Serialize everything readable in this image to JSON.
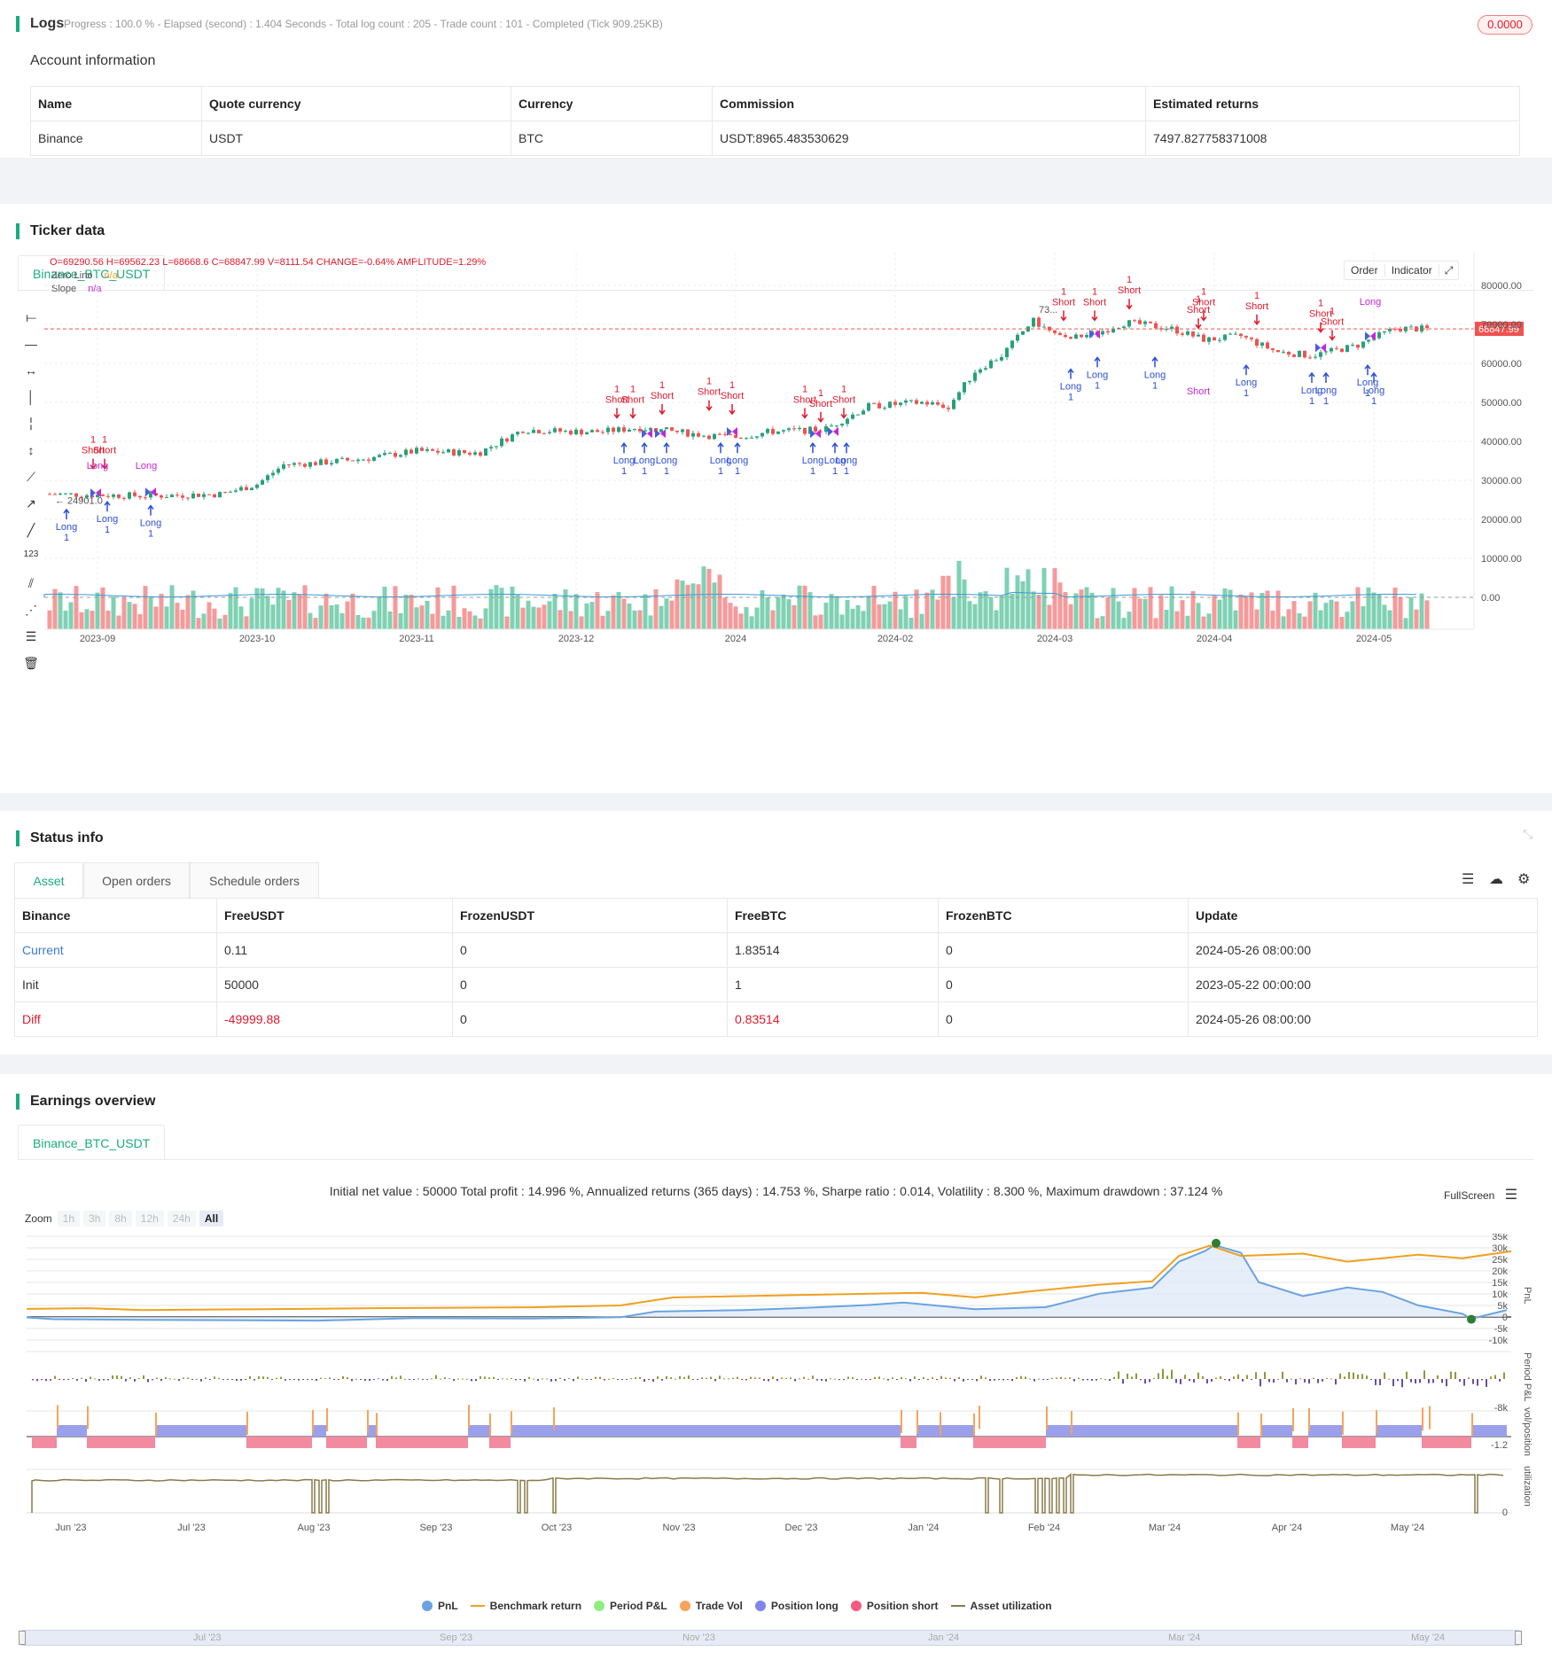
{
  "logs": {
    "title": "Logs",
    "status": "Progress : 100.0 % - Elapsed (second) : 1.404  Seconds - Total log count : 205 - Trade count : 101 - Completed (Tick 909.25KB)",
    "badge": "0.0000"
  },
  "account": {
    "title": "Account information",
    "headers": [
      "Name",
      "Quote currency",
      "Currency",
      "Commission",
      "Estimated returns"
    ],
    "row": [
      "Binance",
      "USDT",
      "BTC",
      "USDT:8965.483530629",
      "7497.827758371008"
    ]
  },
  "ticker": {
    "title": "Ticker data",
    "tab": "Binance_BTC_USDT",
    "ohlc": "O=69290.56 H=69562.23 L=68668.6 C=68847.99 V=8111.54 CHANGE=-0.64% AMPLITUDE=1.29%",
    "zero_line_label": "Zero Line",
    "zero_line_value": "n/a",
    "slope_label": "Slope",
    "slope_value": "n/a",
    "order_btn": "Order",
    "indicator_btn": "Indicator",
    "price_tag": "68847.99",
    "price_axis": [
      "80000.00",
      "70000.00",
      "60000.00",
      "50000.00",
      "40000.00",
      "30000.00",
      "20000.00",
      "10000.00",
      "0.00"
    ],
    "date_axis": [
      "2023-09",
      "2023-10",
      "2023-11",
      "2023-12",
      "2024",
      "2024-02",
      "2024-03",
      "2024-04",
      "2024-05"
    ],
    "low_marker": "24901.0",
    "high_marker": "73..."
  },
  "status": {
    "title": "Status info",
    "tabs": [
      "Asset",
      "Open orders",
      "Schedule orders"
    ],
    "headers": [
      "Binance",
      "FreeUSDT",
      "FrozenUSDT",
      "FreeBTC",
      "FrozenBTC",
      "Update"
    ],
    "rows": [
      [
        "Current",
        "0.11",
        "0",
        "1.83514",
        "0",
        "2024-05-26 08:00:00"
      ],
      [
        "Init",
        "50000",
        "0",
        "1",
        "0",
        "2023-05-22 00:00:00"
      ],
      [
        "Diff",
        "-49999.88",
        "0",
        "0.83514",
        "0",
        "2024-05-26 08:00:00"
      ]
    ]
  },
  "earnings": {
    "title": "Earnings overview",
    "tab": "Binance_BTC_USDT",
    "summary": "Initial net value : 50000 Total profit : 14.996 %, Annualized returns (365 days) : 14.753 %, Sharpe ratio : 0.014, Volatility : 8.300 %, Maximum drawdown : 37.124 %",
    "fullscreen": "FullScreen",
    "zoom_label": "Zoom",
    "zoom_buttons": [
      "1h",
      "3h",
      "8h",
      "12h",
      "24h",
      "All"
    ],
    "pnl_axis": [
      "35k",
      "30k",
      "25k",
      "20k",
      "15k",
      "10k",
      "5k",
      "0",
      "-5k",
      "-10k"
    ],
    "pnl_axis_title": "PnL",
    "period_axis_title": "Period P&L",
    "period_min": "-8k",
    "vol_axis_title": "vol/position",
    "vol_min": "-1.2",
    "util_axis_title": "utilization",
    "util_zero": "0",
    "month_axis": [
      "Jun '23",
      "Jul '23",
      "Aug '23",
      "Sep '23",
      "Oct '23",
      "Nov '23",
      "Dec '23",
      "Jan '24",
      "Feb '24",
      "Mar '24",
      "Apr '24",
      "May '24"
    ],
    "navigator_axis": [
      "Jul '23",
      "Sep '23",
      "Nov '23",
      "Jan '24",
      "Mar '24",
      "May '24"
    ],
    "legend": [
      "PnL",
      "Benchmark return",
      "Period P&L",
      "Trade Vol",
      "Position long",
      "Position short",
      "Asset utilization"
    ]
  },
  "colors": {
    "accent": "#1aab7e",
    "up": "#26a17b",
    "down": "#ef5350",
    "pnl": "#6aa3e0",
    "benchmark": "#f0a020",
    "long": "#8c8fe8",
    "short": "#ef5f7f"
  }
}
